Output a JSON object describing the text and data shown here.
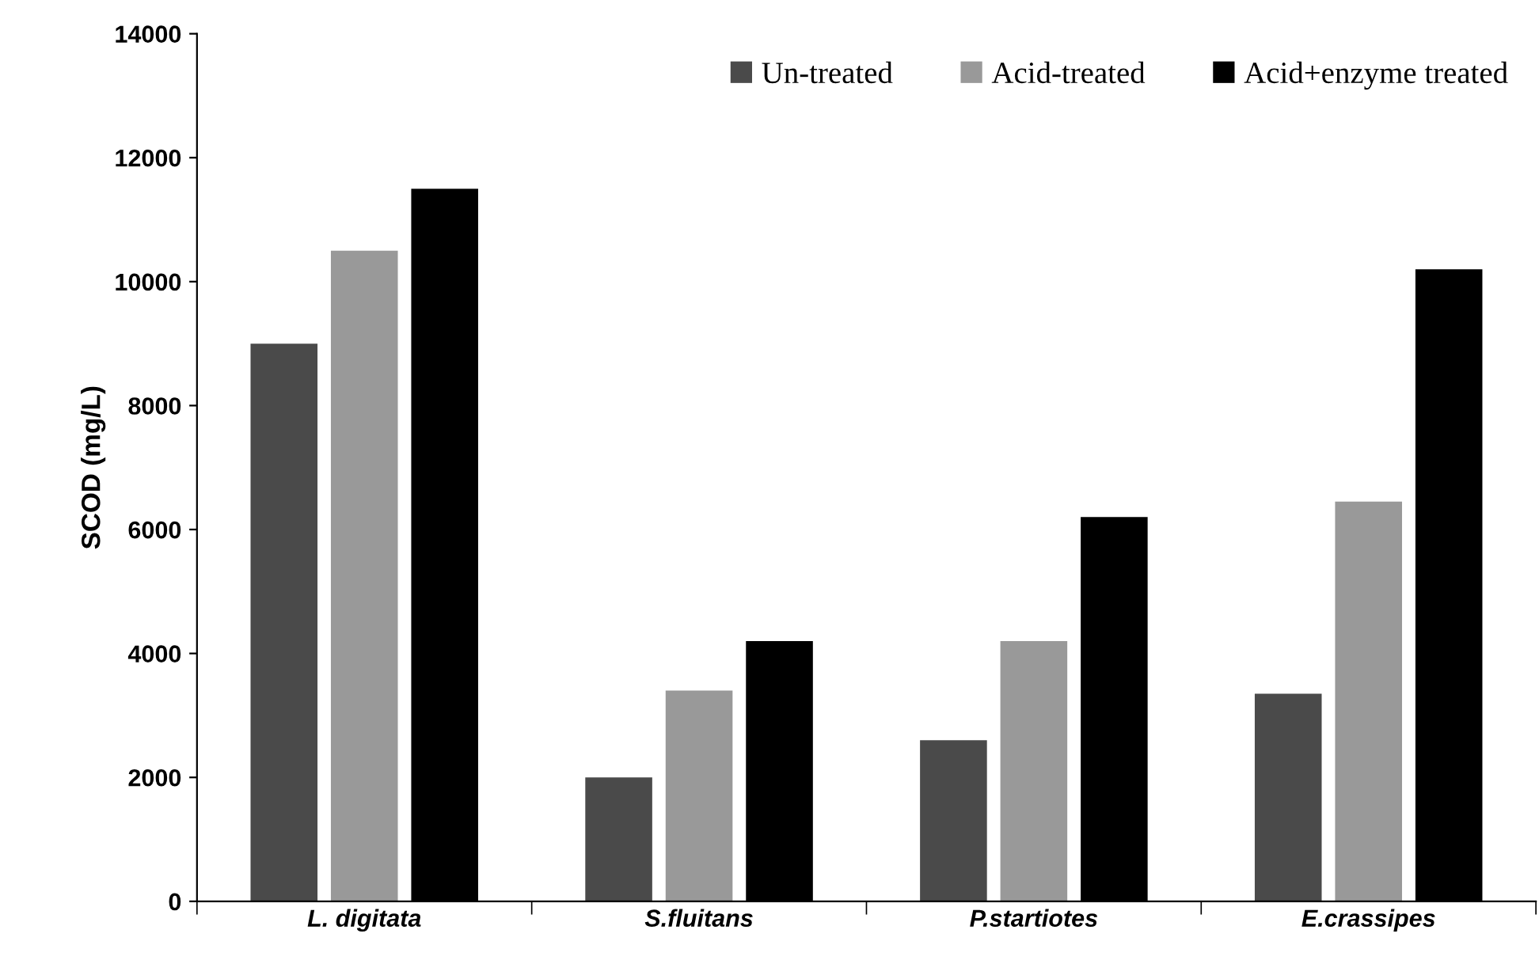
{
  "chart_data": {
    "type": "bar",
    "ylabel": "SCOD (mg/L)",
    "categories": [
      "L. digitata",
      "S.fluitans",
      "P.startiotes",
      "E.crassipes"
    ],
    "series": [
      {
        "name": "Un-treated",
        "color": "#4a4a4a",
        "values": [
          9000,
          2000,
          2600,
          3350
        ]
      },
      {
        "name": "Acid-treated",
        "color": "#999999",
        "values": [
          10500,
          3400,
          4200,
          6450
        ]
      },
      {
        "name": "Acid+enzyme treated",
        "color": "#000000",
        "values": [
          11500,
          4200,
          6200,
          10200
        ]
      }
    ],
    "ylim": [
      0,
      14000
    ],
    "yticks": [
      0,
      2000,
      4000,
      6000,
      8000,
      10000,
      12000,
      14000
    ],
    "grid": false,
    "legend": "top right"
  }
}
